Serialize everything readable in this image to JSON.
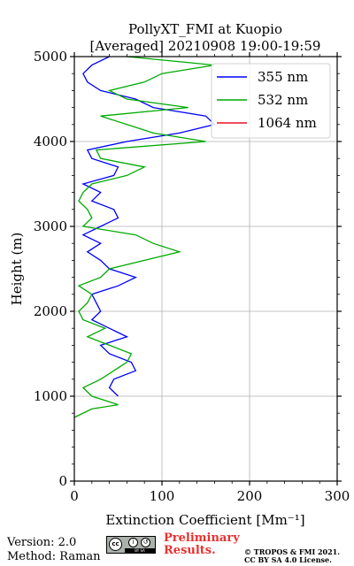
{
  "chart_data": {
    "type": "line",
    "title": "PollyXT_FMI at Kuopio",
    "subtitle": "[Averaged] 20210908 19:00-19:59",
    "xlabel": "Extinction Coefficient [Mm⁻¹]",
    "ylabel": "Height (m)",
    "xlim": [
      0,
      300
    ],
    "ylim": [
      0,
      5000
    ],
    "xticks": [
      0,
      100,
      200,
      300
    ],
    "yticks": [
      0,
      1000,
      2000,
      3000,
      4000,
      5000
    ],
    "grid": true,
    "legend_position": "top-right",
    "series": [
      {
        "name": "355 nm",
        "color": "#0000ff",
        "points": [
          [
            50,
            1000
          ],
          [
            40,
            1100
          ],
          [
            45,
            1200
          ],
          [
            70,
            1300
          ],
          [
            65,
            1400
          ],
          [
            40,
            1500
          ],
          [
            30,
            1600
          ],
          [
            60,
            1700
          ],
          [
            40,
            1800
          ],
          [
            20,
            1900
          ],
          [
            30,
            2000
          ],
          [
            25,
            2100
          ],
          [
            20,
            2200
          ],
          [
            50,
            2300
          ],
          [
            70,
            2400
          ],
          [
            40,
            2500
          ],
          [
            30,
            2600
          ],
          [
            15,
            2700
          ],
          [
            30,
            2800
          ],
          [
            10,
            2900
          ],
          [
            30,
            3000
          ],
          [
            50,
            3100
          ],
          [
            45,
            3200
          ],
          [
            20,
            3300
          ],
          [
            30,
            3400
          ],
          [
            10,
            3500
          ],
          [
            45,
            3600
          ],
          [
            50,
            3700
          ],
          [
            20,
            3800
          ],
          [
            15,
            3900
          ],
          [
            60,
            4000
          ],
          [
            120,
            4100
          ],
          [
            160,
            4200
          ],
          [
            150,
            4300
          ],
          [
            90,
            4400
          ],
          [
            70,
            4500
          ],
          [
            30,
            4600
          ],
          [
            15,
            4700
          ],
          [
            10,
            4800
          ],
          [
            20,
            4900
          ],
          [
            40,
            5000
          ]
        ]
      },
      {
        "name": "532 nm",
        "color": "#00aa00",
        "points": [
          [
            0,
            750
          ],
          [
            20,
            850
          ],
          [
            50,
            900
          ],
          [
            20,
            1000
          ],
          [
            10,
            1100
          ],
          [
            30,
            1200
          ],
          [
            45,
            1300
          ],
          [
            60,
            1400
          ],
          [
            65,
            1500
          ],
          [
            40,
            1600
          ],
          [
            15,
            1700
          ],
          [
            35,
            1800
          ],
          [
            10,
            1900
          ],
          [
            5,
            2000
          ],
          [
            15,
            2100
          ],
          [
            20,
            2200
          ],
          [
            5,
            2300
          ],
          [
            30,
            2400
          ],
          [
            40,
            2500
          ],
          [
            80,
            2600
          ],
          [
            120,
            2700
          ],
          [
            90,
            2800
          ],
          [
            70,
            2900
          ],
          [
            10,
            3000
          ],
          [
            20,
            3100
          ],
          [
            15,
            3200
          ],
          [
            5,
            3300
          ],
          [
            10,
            3400
          ],
          [
            20,
            3500
          ],
          [
            60,
            3600
          ],
          [
            80,
            3700
          ],
          [
            30,
            3800
          ],
          [
            25,
            3900
          ],
          [
            150,
            4000
          ],
          [
            90,
            4100
          ],
          [
            60,
            4200
          ],
          [
            30,
            4300
          ],
          [
            130,
            4400
          ],
          [
            60,
            4500
          ],
          [
            40,
            4600
          ],
          [
            80,
            4700
          ],
          [
            100,
            4800
          ],
          [
            160,
            4900
          ],
          [
            60,
            5000
          ]
        ]
      },
      {
        "name": "1064 nm",
        "color": "#e8112d",
        "points": []
      }
    ]
  },
  "footer": {
    "version": "Version: 2.0",
    "method": "Method: Raman",
    "preliminary_line1": "Preliminary",
    "preliminary_line2": "Results.",
    "license_line1": "© TROPOS & FMI 2021.",
    "license_line2": "CC BY SA 4.0 License."
  },
  "badge": {
    "cc": "cc",
    "by": "i",
    "sa": "↺",
    "bar": "BY SA"
  }
}
